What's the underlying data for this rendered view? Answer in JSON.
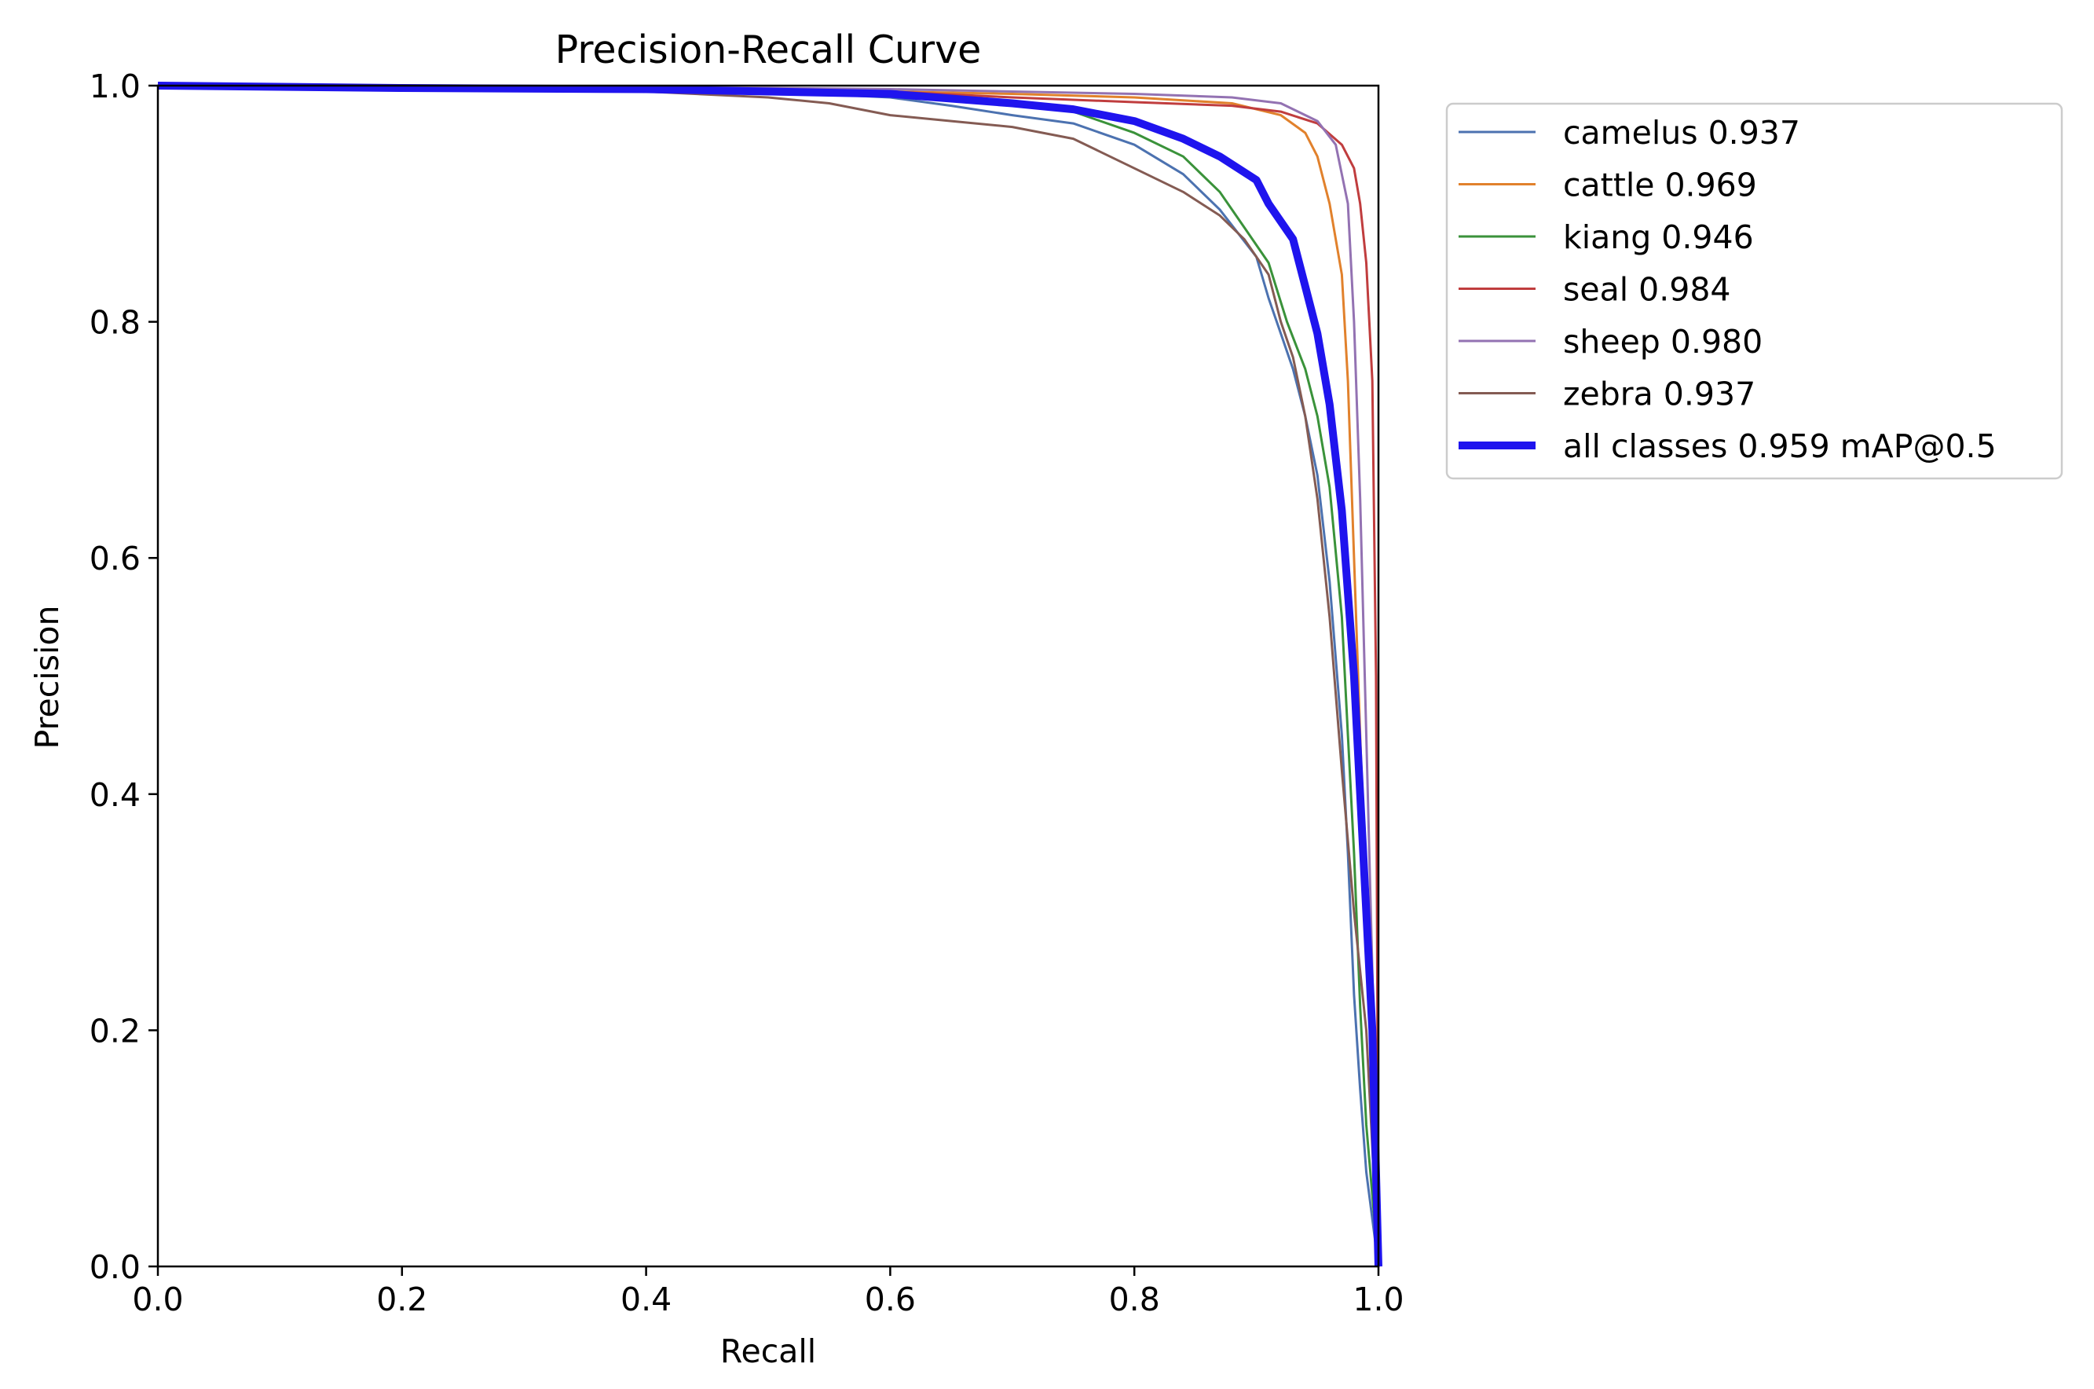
{
  "chart_data": {
    "type": "line",
    "title": "Precision-Recall Curve",
    "xlabel": "Recall",
    "ylabel": "Precision",
    "xlim": [
      0,
      1
    ],
    "ylim": [
      0,
      1
    ],
    "x_ticks": [
      "0.0",
      "0.2",
      "0.4",
      "0.6",
      "0.8",
      "1.0"
    ],
    "y_ticks": [
      "0.0",
      "0.2",
      "0.4",
      "0.6",
      "0.8",
      "1.0"
    ],
    "grid": false,
    "legend_position": "outside-upper-right",
    "series": [
      {
        "name": "camelus",
        "legend_label": "camelus 0.937",
        "ap": 0.937,
        "color": "#4c72b0",
        "points": [
          [
            0,
            1.0
          ],
          [
            0.1,
            0.998
          ],
          [
            0.3,
            0.997
          ],
          [
            0.5,
            0.995
          ],
          [
            0.6,
            0.99
          ],
          [
            0.65,
            0.983
          ],
          [
            0.7,
            0.975
          ],
          [
            0.75,
            0.968
          ],
          [
            0.8,
            0.95
          ],
          [
            0.84,
            0.925
          ],
          [
            0.87,
            0.895
          ],
          [
            0.9,
            0.855
          ],
          [
            0.91,
            0.82
          ],
          [
            0.92,
            0.79
          ],
          [
            0.93,
            0.76
          ],
          [
            0.94,
            0.72
          ],
          [
            0.95,
            0.67
          ],
          [
            0.96,
            0.58
          ],
          [
            0.97,
            0.45
          ],
          [
            0.975,
            0.35
          ],
          [
            0.98,
            0.23
          ],
          [
            0.985,
            0.15
          ],
          [
            0.99,
            0.08
          ],
          [
            1.0,
            0.0
          ]
        ]
      },
      {
        "name": "cattle",
        "legend_label": "cattle 0.969",
        "ap": 0.969,
        "color": "#e1812c",
        "points": [
          [
            0,
            1.0
          ],
          [
            0.2,
            0.998
          ],
          [
            0.4,
            0.997
          ],
          [
            0.6,
            0.995
          ],
          [
            0.7,
            0.993
          ],
          [
            0.8,
            0.99
          ],
          [
            0.88,
            0.985
          ],
          [
            0.92,
            0.975
          ],
          [
            0.94,
            0.96
          ],
          [
            0.95,
            0.94
          ],
          [
            0.96,
            0.9
          ],
          [
            0.97,
            0.84
          ],
          [
            0.975,
            0.75
          ],
          [
            0.98,
            0.6
          ],
          [
            0.985,
            0.45
          ],
          [
            0.99,
            0.3
          ],
          [
            0.995,
            0.18
          ],
          [
            1.0,
            0.0
          ]
        ]
      },
      {
        "name": "kiang",
        "legend_label": "kiang 0.946",
        "ap": 0.946,
        "color": "#3a923a",
        "points": [
          [
            0,
            1.0
          ],
          [
            0.3,
            0.998
          ],
          [
            0.5,
            0.995
          ],
          [
            0.6,
            0.992
          ],
          [
            0.7,
            0.985
          ],
          [
            0.75,
            0.978
          ],
          [
            0.8,
            0.96
          ],
          [
            0.84,
            0.94
          ],
          [
            0.87,
            0.91
          ],
          [
            0.89,
            0.88
          ],
          [
            0.91,
            0.85
          ],
          [
            0.925,
            0.8
          ],
          [
            0.94,
            0.76
          ],
          [
            0.95,
            0.72
          ],
          [
            0.96,
            0.66
          ],
          [
            0.97,
            0.55
          ],
          [
            0.975,
            0.45
          ],
          [
            0.98,
            0.35
          ],
          [
            0.985,
            0.22
          ],
          [
            0.99,
            0.12
          ],
          [
            1.0,
            0.0
          ]
        ]
      },
      {
        "name": "seal",
        "legend_label": "seal 0.984",
        "ap": 0.984,
        "color": "#c03d3e",
        "points": [
          [
            0,
            1.0
          ],
          [
            0.3,
            0.998
          ],
          [
            0.5,
            0.996
          ],
          [
            0.6,
            0.995
          ],
          [
            0.7,
            0.99
          ],
          [
            0.8,
            0.986
          ],
          [
            0.88,
            0.983
          ],
          [
            0.92,
            0.978
          ],
          [
            0.95,
            0.968
          ],
          [
            0.97,
            0.95
          ],
          [
            0.98,
            0.93
          ],
          [
            0.985,
            0.9
          ],
          [
            0.99,
            0.85
          ],
          [
            0.995,
            0.75
          ],
          [
            0.998,
            0.5
          ],
          [
            1.0,
            0.0
          ]
        ]
      },
      {
        "name": "sheep",
        "legend_label": "sheep 0.980",
        "ap": 0.98,
        "color": "#9372b2",
        "points": [
          [
            0,
            1.0
          ],
          [
            0.3,
            0.999
          ],
          [
            0.5,
            0.998
          ],
          [
            0.6,
            0.997
          ],
          [
            0.7,
            0.995
          ],
          [
            0.8,
            0.993
          ],
          [
            0.88,
            0.99
          ],
          [
            0.92,
            0.985
          ],
          [
            0.95,
            0.97
          ],
          [
            0.965,
            0.95
          ],
          [
            0.975,
            0.9
          ],
          [
            0.98,
            0.8
          ],
          [
            0.985,
            0.65
          ],
          [
            0.99,
            0.45
          ],
          [
            0.995,
            0.25
          ],
          [
            1.0,
            0.0
          ]
        ]
      },
      {
        "name": "zebra",
        "legend_label": "zebra 0.937",
        "ap": 0.937,
        "color": "#845b53",
        "points": [
          [
            0,
            1.0
          ],
          [
            0.2,
            0.998
          ],
          [
            0.4,
            0.995
          ],
          [
            0.5,
            0.99
          ],
          [
            0.55,
            0.985
          ],
          [
            0.6,
            0.975
          ],
          [
            0.65,
            0.97
          ],
          [
            0.7,
            0.965
          ],
          [
            0.75,
            0.955
          ],
          [
            0.8,
            0.93
          ],
          [
            0.84,
            0.91
          ],
          [
            0.87,
            0.89
          ],
          [
            0.89,
            0.87
          ],
          [
            0.91,
            0.84
          ],
          [
            0.92,
            0.8
          ],
          [
            0.93,
            0.77
          ],
          [
            0.94,
            0.72
          ],
          [
            0.95,
            0.65
          ],
          [
            0.96,
            0.55
          ],
          [
            0.97,
            0.42
          ],
          [
            0.98,
            0.3
          ],
          [
            0.99,
            0.2
          ],
          [
            1.0,
            0.0
          ]
        ]
      },
      {
        "name": "all classes",
        "legend_label": "all classes 0.959 mAP@0.5",
        "ap": 0.959,
        "color": "#1f14ee",
        "bold": true,
        "points": [
          [
            0,
            1.0
          ],
          [
            0.2,
            0.998
          ],
          [
            0.4,
            0.997
          ],
          [
            0.6,
            0.993
          ],
          [
            0.7,
            0.985
          ],
          [
            0.75,
            0.98
          ],
          [
            0.8,
            0.97
          ],
          [
            0.84,
            0.955
          ],
          [
            0.87,
            0.94
          ],
          [
            0.9,
            0.92
          ],
          [
            0.91,
            0.9
          ],
          [
            0.93,
            0.87
          ],
          [
            0.94,
            0.83
          ],
          [
            0.95,
            0.79
          ],
          [
            0.96,
            0.73
          ],
          [
            0.97,
            0.64
          ],
          [
            0.98,
            0.5
          ],
          [
            0.985,
            0.4
          ],
          [
            0.99,
            0.3
          ],
          [
            0.995,
            0.2
          ],
          [
            1.0,
            0.0
          ]
        ]
      }
    ]
  }
}
